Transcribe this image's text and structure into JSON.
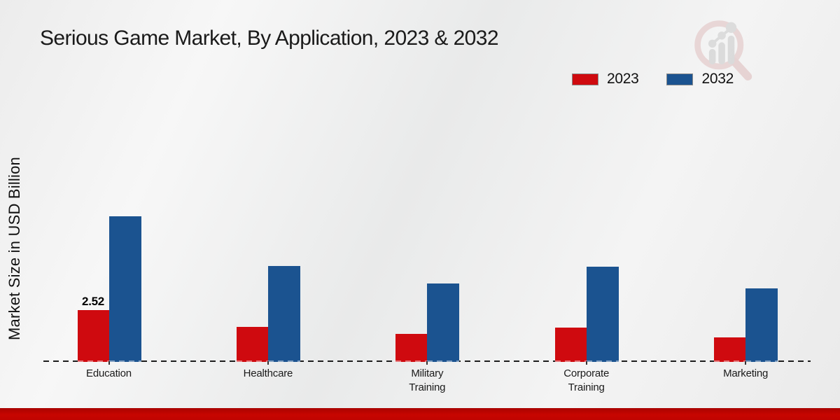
{
  "title": "Serious Game Market, By Application, 2023 & 2032",
  "ylabel": "Market Size in USD Billion",
  "legend": [
    {
      "label": "2023",
      "color": "#cf0a0f"
    },
    {
      "label": "2032",
      "color": "#1b5390"
    }
  ],
  "colors": {
    "bar_red": "#cf0a0f",
    "bar_blue": "#1b5390",
    "footer_red": "#c00400",
    "background": "#ededed",
    "baseline": "#1d1d1d"
  },
  "logo_icon": "magnifier-bar-chart-logo",
  "chart_data": {
    "type": "bar",
    "title": "Serious Game Market, By Application, 2023 & 2032",
    "xlabel": "",
    "ylabel": "Market Size in USD Billion",
    "categories": [
      "Education",
      "Healthcare",
      "Military Training",
      "Corporate Training",
      "Marketing"
    ],
    "series": [
      {
        "name": "2023",
        "color": "#cf0a0f",
        "values": [
          2.52,
          1.7,
          1.36,
          1.66,
          1.19
        ]
      },
      {
        "name": "2032",
        "color": "#1b5390",
        "values": [
          7.05,
          4.64,
          3.79,
          4.61,
          3.56
        ]
      }
    ],
    "annotations": [
      {
        "series": "2023",
        "category": "Education",
        "text": "2.52"
      }
    ],
    "ylim": [
      0,
      7.6
    ],
    "grid": false,
    "baseline_style": "dashed",
    "legend_position": "top-right",
    "unit": "USD Billion"
  }
}
